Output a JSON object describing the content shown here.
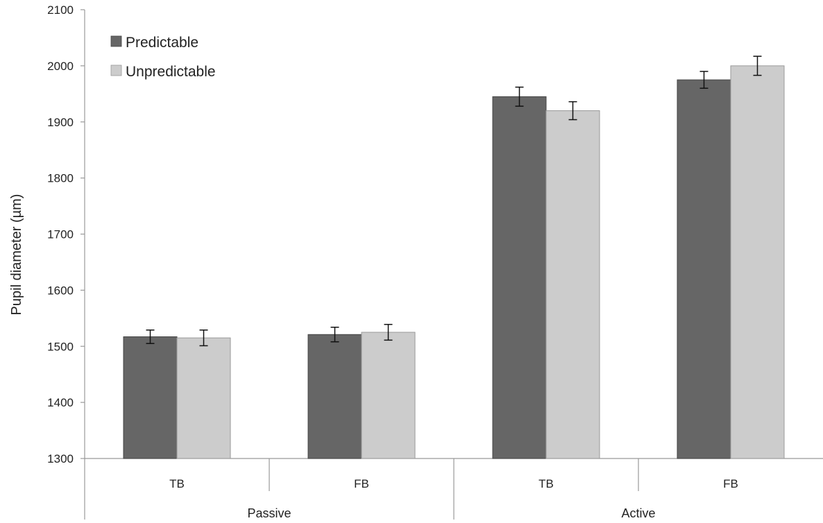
{
  "chart_data": {
    "type": "bar",
    "title": "",
    "ylabel": "Pupil diameter (µm)",
    "xlabel": "",
    "ylim": [
      1300,
      2100
    ],
    "yticks": [
      1300,
      1400,
      1500,
      1600,
      1700,
      1800,
      1900,
      2000,
      2100
    ],
    "categories": [
      "TB",
      "FB",
      "TB",
      "FB"
    ],
    "groups": [
      {
        "label": "Passive",
        "categories": [
          "TB",
          "FB"
        ]
      },
      {
        "label": "Active",
        "categories": [
          "TB",
          "FB"
        ]
      }
    ],
    "series": [
      {
        "name": "Predictable",
        "color": "#666666",
        "values": [
          1517,
          1521,
          1945,
          1975
        ],
        "errors": [
          12,
          13,
          17,
          15
        ]
      },
      {
        "name": "Unpredictable",
        "color": "#cccccc",
        "values": [
          1515,
          1525,
          1920,
          2000
        ],
        "errors": [
          14,
          14,
          16,
          17
        ]
      }
    ],
    "legend": {
      "position": "top-left"
    },
    "grid": false
  }
}
